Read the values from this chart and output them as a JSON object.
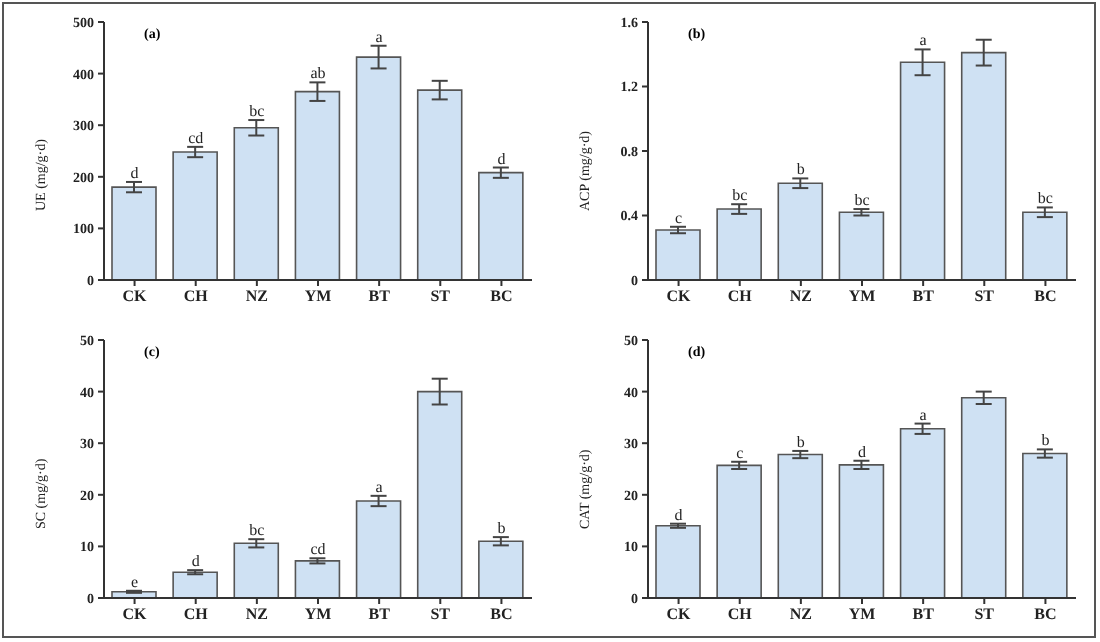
{
  "chart_data": [
    {
      "type": "bar",
      "title": "(a)",
      "ylabel": "UE (mg/g·d)",
      "categories": [
        "CK",
        "CH",
        "NZ",
        "YM",
        "BT",
        "ST",
        "BC"
      ],
      "values": [
        180,
        248,
        295,
        365,
        432,
        368,
        208
      ],
      "errors": [
        10,
        10,
        15,
        18,
        22,
        18,
        10
      ],
      "color": "#cfe1f3",
      "ylim": [
        0,
        500
      ],
      "yticks": [
        0,
        100,
        200,
        300,
        400,
        500
      ],
      "grid": false,
      "legend": false,
      "annotations": [
        {
          "text": "d",
          "x": "CK",
          "y": 190
        },
        {
          "text": "cd",
          "x": "CH",
          "y": 258
        },
        {
          "text": "bc",
          "x": "NZ",
          "y": 310
        },
        {
          "text": "ab",
          "x": "YM",
          "y": 383
        },
        {
          "text": "a",
          "x": "BT",
          "y": 454
        },
        {
          "text": "d",
          "x": "BC",
          "y": 218
        }
      ]
    },
    {
      "type": "bar",
      "title": "(b)",
      "ylabel": "ACP (mg/g·d)",
      "categories": [
        "CK",
        "CH",
        "NZ",
        "YM",
        "BT",
        "ST",
        "BC"
      ],
      "values": [
        0.31,
        0.44,
        0.6,
        0.42,
        1.35,
        1.41,
        0.42
      ],
      "errors": [
        0.02,
        0.03,
        0.03,
        0.02,
        0.08,
        0.08,
        0.03
      ],
      "color": "#cfe1f3",
      "ylim": [
        0,
        1.6
      ],
      "yticks": [
        {
          "value": 0,
          "label": "0"
        },
        {
          "value": 0.4,
          "label": "0.4"
        },
        {
          "value": 0.8,
          "label": "0.8"
        },
        {
          "value": 1.2,
          "label": "1.2"
        },
        {
          "value": 1.6,
          "label": "1.6"
        }
      ],
      "grid": false,
      "legend": false,
      "annotations": [
        {
          "text": "c",
          "x": "CK",
          "y": 0.33
        },
        {
          "text": "bc",
          "x": "CH",
          "y": 0.47
        },
        {
          "text": "b",
          "x": "NZ",
          "y": 0.63
        },
        {
          "text": "bc",
          "x": "YM",
          "y": 0.44
        },
        {
          "text": "a",
          "x": "BT",
          "y": 1.43
        },
        {
          "text": "bc",
          "x": "BC",
          "y": 0.45
        }
      ]
    },
    {
      "type": "bar",
      "title": "(c)",
      "ylabel": "SC (mg/g·d)",
      "categories": [
        "CK",
        "CH",
        "NZ",
        "YM",
        "BT",
        "ST",
        "BC"
      ],
      "values": [
        1.2,
        5,
        10.6,
        7.2,
        18.8,
        40,
        11
      ],
      "errors": [
        0.2,
        0.4,
        0.8,
        0.5,
        1,
        2.5,
        0.8
      ],
      "color": "#cfe1f3",
      "ylim": [
        0,
        50
      ],
      "yticks": [
        0,
        10,
        20,
        30,
        40,
        50
      ],
      "grid": false,
      "legend": false,
      "annotations": [
        {
          "text": "e",
          "x": "CK",
          "y": 1.4
        },
        {
          "text": "d",
          "x": "CH",
          "y": 5.4
        },
        {
          "text": "bc",
          "x": "NZ",
          "y": 11.4
        },
        {
          "text": "cd",
          "x": "YM",
          "y": 7.7
        },
        {
          "text": "a",
          "x": "BT",
          "y": 19.8
        },
        {
          "text": "b",
          "x": "BC",
          "y": 11.8
        }
      ]
    },
    {
      "type": "bar",
      "title": "(d)",
      "ylabel": "CAT (mg/g·d)",
      "categories": [
        "CK",
        "CH",
        "NZ",
        "YM",
        "BT",
        "ST",
        "BC"
      ],
      "values": [
        14,
        25.7,
        27.8,
        25.8,
        32.8,
        38.8,
        28
      ],
      "errors": [
        0.4,
        0.7,
        0.7,
        0.8,
        1,
        1.2,
        0.8
      ],
      "color": "#cfe1f3",
      "ylim": [
        0,
        50
      ],
      "yticks": [
        0,
        10,
        20,
        30,
        40,
        50
      ],
      "grid": false,
      "legend": false,
      "annotations": [
        {
          "text": "d",
          "x": "CK",
          "y": 14.4
        },
        {
          "text": "c",
          "x": "CH",
          "y": 26.4
        },
        {
          "text": "b",
          "x": "NZ",
          "y": 28.5
        },
        {
          "text": "d",
          "x": "YM",
          "y": 26.6
        },
        {
          "text": "a",
          "x": "BT",
          "y": 33.8
        },
        {
          "text": "b",
          "x": "BC",
          "y": 28.8
        }
      ]
    }
  ]
}
